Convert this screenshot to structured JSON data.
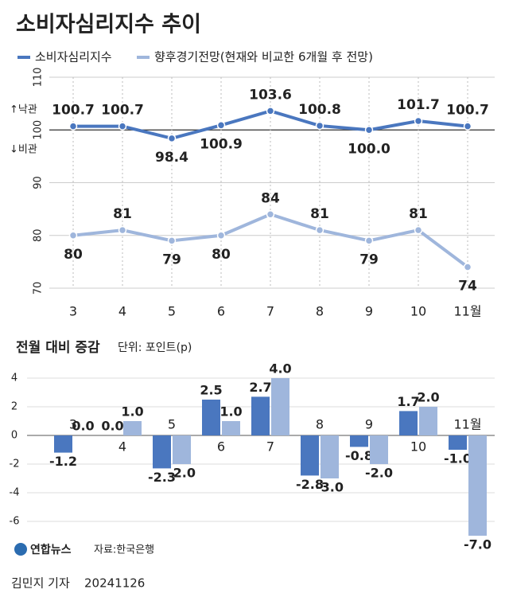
{
  "chart_data": [
    {
      "type": "line",
      "title": "소비자심리지수 추이",
      "categories": [
        "3",
        "4",
        "5",
        "6",
        "7",
        "8",
        "9",
        "10",
        "11월"
      ],
      "series": [
        {
          "name": "소비자심리지수",
          "color": "#4a77bf",
          "values": [
            100.7,
            100.7,
            98.4,
            100.9,
            103.6,
            100.8,
            100.0,
            101.7,
            100.7
          ],
          "value_labels": [
            "100.7",
            "100.7",
            "98.4",
            "100.9",
            "103.6",
            "100.8",
            "100.0",
            "101.7",
            "100.7"
          ]
        },
        {
          "name": "향후경기전망(현재와 비교한 6개월 후 전망)",
          "color": "#9fb6dc",
          "values": [
            80,
            81,
            79,
            80,
            84,
            81,
            79,
            81,
            74
          ]
        }
      ],
      "ylim": [
        70,
        110
      ],
      "yticks": [
        70,
        80,
        90,
        100,
        110
      ],
      "reference_line": 100,
      "annotations": [
        "↑낙관",
        "↓비관"
      ],
      "grid": true
    },
    {
      "type": "bar",
      "title": "전월 대비 증감",
      "subtitle": "단위: 포인트(p)",
      "categories": [
        "3",
        "4",
        "5",
        "6",
        "7",
        "8",
        "9",
        "10",
        "11월"
      ],
      "series": [
        {
          "color": "#4a77bf",
          "values": [
            -1.2,
            0.0,
            -2.3,
            2.5,
            2.7,
            -2.8,
            -0.8,
            1.7,
            -1.0
          ],
          "value_labels": [
            "-1.2",
            "0.0",
            "-2.3",
            "2.5",
            "2.7",
            "-2.8",
            "-0.8",
            "1.7",
            "-1.0"
          ]
        },
        {
          "color": "#9fb6dc",
          "values": [
            0.0,
            1.0,
            -2.0,
            1.0,
            4.0,
            -3.0,
            -2.0,
            2.0,
            -7.0
          ],
          "value_labels": [
            "0.0",
            "1.0",
            "-2.0",
            "1.0",
            "4.0",
            "-3.0",
            "-2.0",
            "2.0",
            "-7.0"
          ]
        }
      ],
      "ylim": [
        -7.5,
        4.5
      ],
      "yticks": [
        4,
        2,
        0,
        -2,
        -4,
        -6
      ]
    }
  ],
  "logo": "연합뉴스",
  "source": "자료:한국은행",
  "credit": "김민지 기자",
  "date": "20241126"
}
